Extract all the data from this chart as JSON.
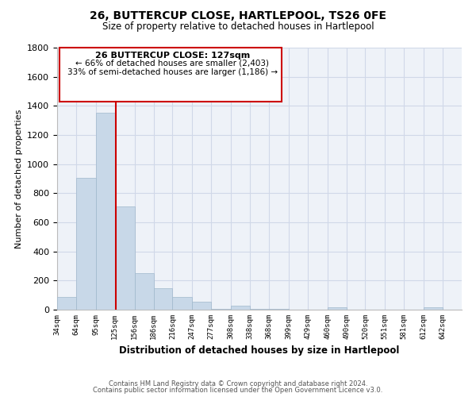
{
  "title": "26, BUTTERCUP CLOSE, HARTLEPOOL, TS26 0FE",
  "subtitle": "Size of property relative to detached houses in Hartlepool",
  "xlabel": "Distribution of detached houses by size in Hartlepool",
  "ylabel": "Number of detached properties",
  "bar_color": "#c8d8e8",
  "bar_edge_color": "#a0b8cc",
  "bar_left_edges": [
    34,
    64,
    95,
    125,
    156,
    186,
    216,
    247,
    277,
    308,
    338,
    368,
    399,
    429,
    460,
    490,
    520,
    551,
    581,
    612
  ],
  "bar_heights": [
    90,
    905,
    1355,
    710,
    250,
    145,
    90,
    55,
    5,
    30,
    5,
    5,
    0,
    0,
    15,
    0,
    0,
    0,
    0,
    15
  ],
  "bar_widths": [
    30,
    31,
    30,
    31,
    30,
    30,
    31,
    30,
    31,
    30,
    30,
    31,
    30,
    31,
    30,
    30,
    31,
    30,
    31,
    30
  ],
  "tick_labels": [
    "34sqm",
    "64sqm",
    "95sqm",
    "125sqm",
    "156sqm",
    "186sqm",
    "216sqm",
    "247sqm",
    "277sqm",
    "308sqm",
    "338sqm",
    "368sqm",
    "399sqm",
    "429sqm",
    "460sqm",
    "490sqm",
    "520sqm",
    "551sqm",
    "581sqm",
    "612sqm",
    "642sqm"
  ],
  "tick_positions": [
    34,
    64,
    95,
    125,
    156,
    186,
    216,
    247,
    277,
    308,
    338,
    368,
    399,
    429,
    460,
    490,
    520,
    551,
    581,
    612,
    642
  ],
  "vline_x": 127,
  "vline_color": "#cc0000",
  "ylim": [
    0,
    1800
  ],
  "xlim": [
    34,
    672
  ],
  "yticks": [
    0,
    200,
    400,
    600,
    800,
    1000,
    1200,
    1400,
    1600,
    1800
  ],
  "annotation_title": "26 BUTTERCUP CLOSE: 127sqm",
  "annotation_line1": "← 66% of detached houses are smaller (2,403)",
  "annotation_line2": "33% of semi-detached houses are larger (1,186) →",
  "annotation_box_color": "#ffffff",
  "annotation_box_edge": "#cc0000",
  "footer_line1": "Contains HM Land Registry data © Crown copyright and database right 2024.",
  "footer_line2": "Contains public sector information licensed under the Open Government Licence v3.0.",
  "grid_color": "#d0d8e8",
  "background_color": "#eef2f8"
}
